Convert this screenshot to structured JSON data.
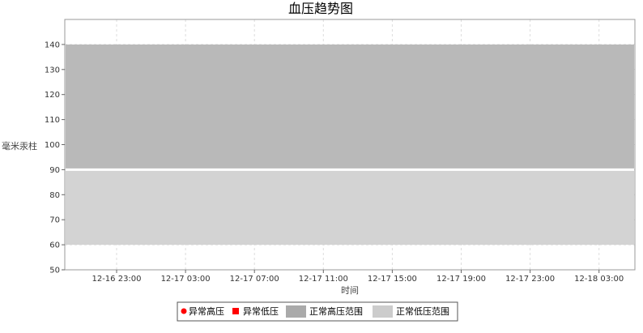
{
  "chart_data": {
    "type": "area",
    "title": "血压趋势图",
    "xlabel": "时间",
    "ylabel": "毫米汞柱",
    "ylim": [
      50,
      150
    ],
    "y_ticks": [
      50,
      60,
      70,
      80,
      90,
      100,
      110,
      120,
      130,
      140
    ],
    "x_ticks": [
      "12-16 23:00",
      "12-17 03:00",
      "12-17 07:00",
      "12-17 11:00",
      "12-17 15:00",
      "12-17 19:00",
      "12-17 23:00",
      "12-18 03:00"
    ],
    "grid": true,
    "legend_position": "bottom",
    "series": [
      {
        "name": "异常高压",
        "marker": "circle",
        "color": "#ff0000",
        "values": []
      },
      {
        "name": "异常低压",
        "marker": "square",
        "color": "#ff0000",
        "values": []
      },
      {
        "name": "正常高压范围",
        "color": "#aaaaaa",
        "range": [
          90,
          140
        ]
      },
      {
        "name": "正常低压范围",
        "color": "#cccccc",
        "range": [
          60,
          90
        ]
      }
    ],
    "colors": {
      "high_band": "#b9b9b9",
      "low_band": "#d3d3d3",
      "grid": "#dddddd",
      "separator": "#ffffff"
    }
  }
}
